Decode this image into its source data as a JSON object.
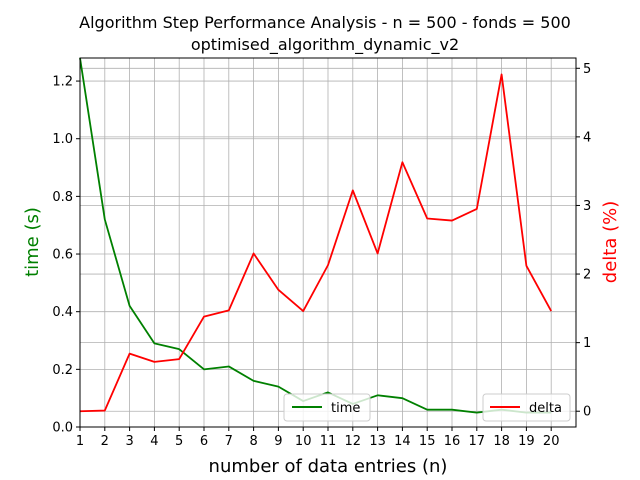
{
  "chart_data": {
    "type": "line",
    "title": "Algorithm Step Performance Analysis - n = 500 - fonds = 500",
    "subtitle": "optimised_algorithm_dynamic_v2",
    "xlabel": "number of data entries (n)",
    "ylabel_left": "time (s)",
    "ylabel_right": "delta (%)",
    "x": [
      1,
      2,
      3,
      4,
      5,
      6,
      7,
      8,
      9,
      10,
      11,
      12,
      13,
      14,
      15,
      16,
      17,
      18,
      19,
      20
    ],
    "x_ticks": [
      "1",
      "2",
      "3",
      "4",
      "5",
      "6",
      "7",
      "8",
      "9",
      "10",
      "11",
      "12",
      "13",
      "14",
      "15",
      "16",
      "17",
      "18",
      "19",
      "20"
    ],
    "xlim": [
      1,
      21
    ],
    "ylim_left": [
      0,
      1.28
    ],
    "ylim_right": [
      -0.23,
      5.15
    ],
    "y_ticks_left": [
      "0.0",
      "0.2",
      "0.4",
      "0.6",
      "0.8",
      "1.0",
      "1.2"
    ],
    "y_ticks_right": [
      "0",
      "1",
      "2",
      "3",
      "4",
      "5"
    ],
    "grid": true,
    "series": [
      {
        "name": "time",
        "axis": "left",
        "color": "#008000",
        "values": [
          1.28,
          0.72,
          0.42,
          0.29,
          0.27,
          0.2,
          0.21,
          0.16,
          0.14,
          0.09,
          0.12,
          0.08,
          0.11,
          0.1,
          0.06,
          0.06,
          0.05,
          0.06,
          0.05,
          0.05
        ]
      },
      {
        "name": "delta",
        "axis": "right",
        "color": "#ff0000",
        "values": [
          0.0,
          0.01,
          0.84,
          0.72,
          0.76,
          1.38,
          1.47,
          2.3,
          1.77,
          1.46,
          2.13,
          3.22,
          2.3,
          3.63,
          2.81,
          2.78,
          2.95,
          4.91,
          2.12,
          1.46
        ]
      }
    ],
    "legend": [
      {
        "label": "time",
        "placement": "lower-center"
      },
      {
        "label": "delta",
        "placement": "lower-right"
      }
    ]
  }
}
